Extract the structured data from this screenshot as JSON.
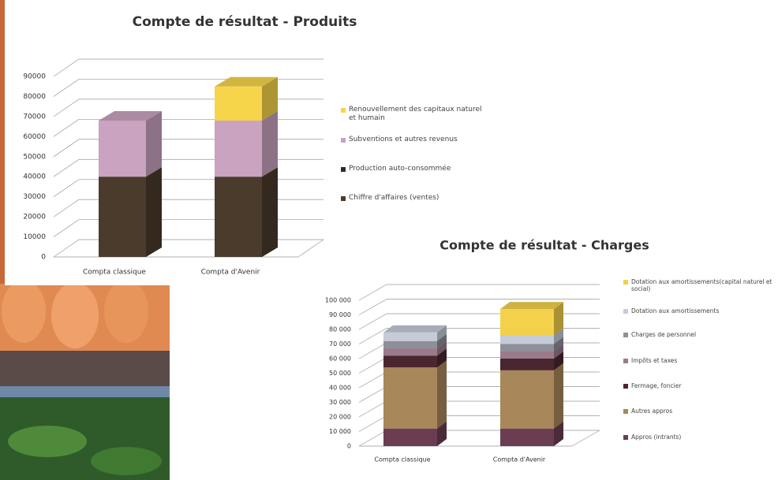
{
  "chart_data": [
    {
      "type": "bar",
      "stacked": true,
      "title": "Compte de résultat - Produits",
      "categories": [
        "Compta classique",
        "Compta d'Avenir"
      ],
      "series": [
        {
          "name": "Chiffre d'affaires (ventes)",
          "color": "#4a3b2c",
          "values": [
            40000,
            40000
          ]
        },
        {
          "name": "Production auto-consommée",
          "color": "#2e2a26",
          "values": [
            0,
            0
          ]
        },
        {
          "name": "Subventions et autres revenus",
          "color": "#c9a3c0",
          "values": [
            28000,
            28000
          ]
        },
        {
          "name": "Renouvellement des capitaux naturel et humain",
          "color": "#f7d54a",
          "values": [
            0,
            17000
          ]
        }
      ],
      "ylim": [
        0,
        90000
      ],
      "yticks": [
        0,
        10000,
        20000,
        30000,
        40000,
        50000,
        60000,
        70000,
        80000,
        90000
      ],
      "grid": true
    },
    {
      "type": "bar",
      "stacked": true,
      "title": "Compte de résultat - Charges",
      "categories": [
        "Compta classique",
        "Compta d'Avenir"
      ],
      "series": [
        {
          "name": "Appros (intrants)",
          "color": "#6b3d52",
          "values": [
            12000,
            12000
          ]
        },
        {
          "name": "Autres appros",
          "color": "#a8875a",
          "values": [
            42000,
            40000
          ]
        },
        {
          "name": "Fermage, foncier",
          "color": "#4a2630",
          "values": [
            8000,
            8000
          ]
        },
        {
          "name": "Impôts et taxes",
          "color": "#9b7a8c",
          "values": [
            5000,
            5000
          ]
        },
        {
          "name": "Charges de personnel",
          "color": "#8f8f9a",
          "values": [
            5000,
            5000
          ]
        },
        {
          "name": "Dotation aux amortissements",
          "color": "#c5cbd8",
          "values": [
            6000,
            6000
          ]
        },
        {
          "name": "Dotation aux amortissements(capital naturel et social)",
          "color": "#f3d14a",
          "values": [
            0,
            18000
          ]
        }
      ],
      "ylim": [
        0,
        100000
      ],
      "yticks": [
        {
          "value": 0,
          "label": "0"
        },
        {
          "value": 10000,
          "label": "10 000"
        },
        {
          "value": 20000,
          "label": "20 000"
        },
        {
          "value": 30000,
          "label": "30 000"
        },
        {
          "value": 40000,
          "label": "40 000"
        },
        {
          "value": 50000,
          "label": "50 000"
        },
        {
          "value": 60000,
          "label": "60 000"
        },
        {
          "value": 70000,
          "label": "70 000"
        },
        {
          "value": 80000,
          "label": "80 000"
        },
        {
          "value": 90000,
          "label": "90 000"
        },
        {
          "value": 100000,
          "label": "100 000"
        }
      ],
      "grid": true
    }
  ]
}
